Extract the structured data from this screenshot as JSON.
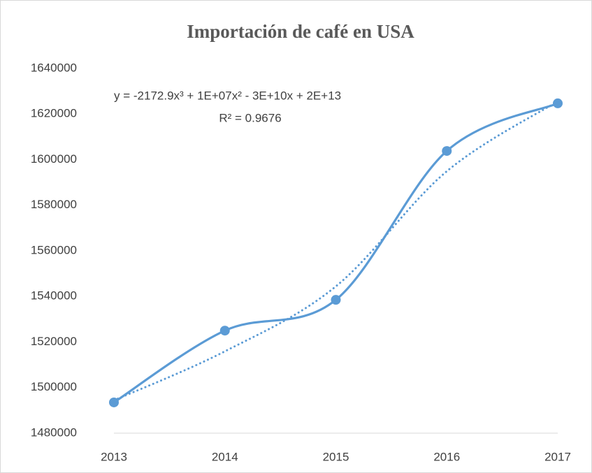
{
  "chart_data": {
    "type": "line",
    "title": "Importación de café en USA",
    "annotations": [
      "y = -2172.9x³ + 1E+07x² - 3E+10x + 2E+13",
      "R² = 0.9676"
    ],
    "categories": [
      "2013",
      "2014",
      "2015",
      "2016",
      "2017"
    ],
    "series": [
      {
        "color": "#5b9bd5",
        "values": [
          1493500,
          1525000,
          1538500,
          1603800,
          1624700
        ],
        "markers": true,
        "smooth": true,
        "dash": "solid"
      },
      {
        "color": "#5b9bd5",
        "values": [
          1494400,
          1515900,
          1544400,
          1594900,
          1625600
        ],
        "markers": false,
        "smooth": true,
        "dash": "dotted"
      }
    ],
    "ylim": [
      1480000,
      1640000
    ],
    "yticks": [
      1480000,
      1500000,
      1520000,
      1540000,
      1560000,
      1580000,
      1600000,
      1620000,
      1640000
    ],
    "grid": false
  }
}
